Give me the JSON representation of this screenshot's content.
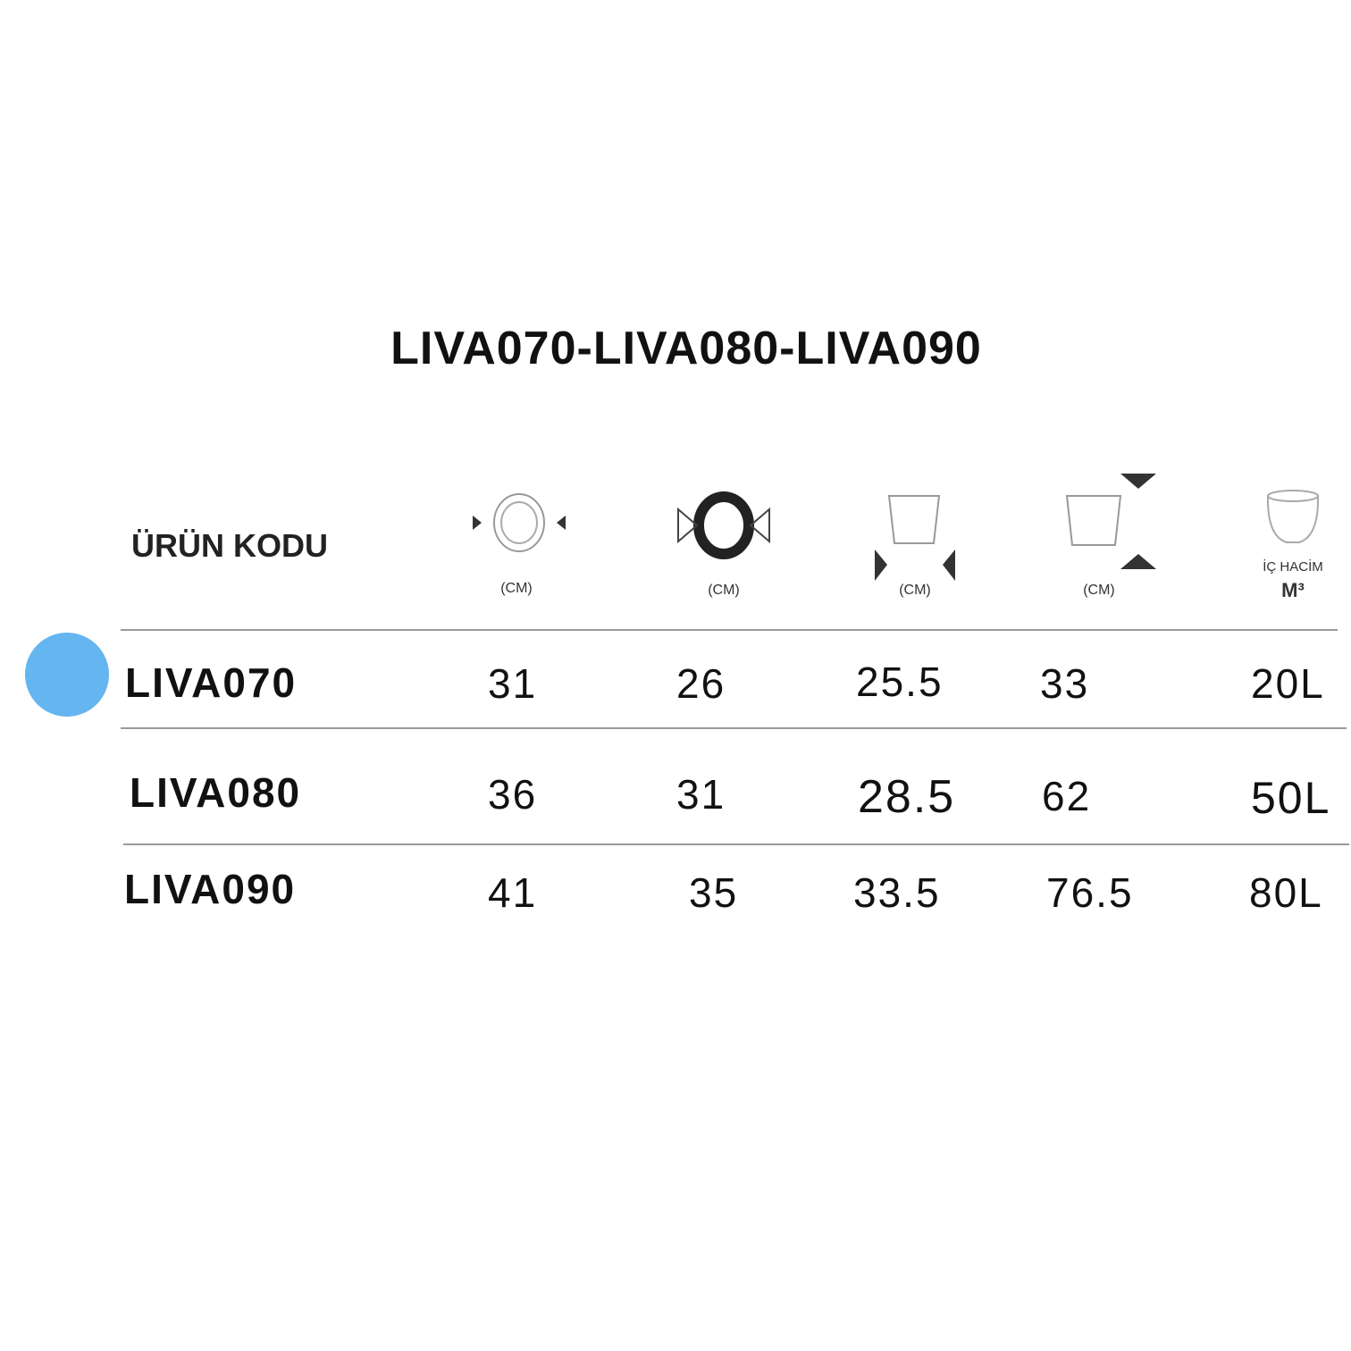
{
  "title": "LIVA070-LIVA080-LIVA090",
  "accent_color": "#64b5f0",
  "header": {
    "code_label": "ÜRÜN KODU",
    "columns": [
      {
        "icon": "outer-diameter-icon",
        "unit": "(CM)"
      },
      {
        "icon": "inner-diameter-icon",
        "unit": "(CM)"
      },
      {
        "icon": "base-width-icon",
        "unit": "(CM)"
      },
      {
        "icon": "height-icon",
        "unit": "(CM)"
      },
      {
        "icon": "volume-icon",
        "unit_line1": "İÇ HACİM",
        "unit_line2": "M³"
      }
    ]
  },
  "rows": [
    {
      "code": "LIVA070",
      "values": [
        "31",
        "26",
        "25.5",
        "33",
        "20L"
      ]
    },
    {
      "code": "LIVA080",
      "values": [
        "36",
        "31",
        "28.5",
        "62",
        "50L"
      ]
    },
    {
      "code": "LIVA090",
      "values": [
        "41",
        "35",
        "33.5",
        "76.5",
        "80L"
      ]
    }
  ]
}
